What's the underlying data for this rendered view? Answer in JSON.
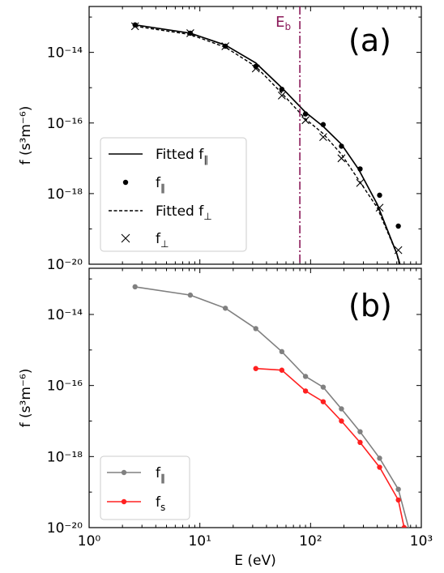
{
  "colors": {
    "fitted_par": "#000000",
    "fitted_perp": "#000000",
    "energy_marker": "#8b1a5a",
    "f_par_panel_b": "#808080",
    "f_s": "#ff2020"
  },
  "chart_data": [
    {
      "type": "line",
      "panel_label": "(a)",
      "xscale": "log",
      "yscale": "log",
      "xlim": [
        1,
        1000
      ],
      "ylim": [
        1e-20,
        2e-13
      ],
      "ylabel": "f (s³m⁻⁶)",
      "y_ticks": [
        "10⁻¹⁴",
        "10⁻¹⁶",
        "10⁻¹⁸",
        "10⁻²⁰"
      ],
      "vline": {
        "x": 80,
        "label": "E_b"
      },
      "legend_position": "lower-left",
      "series": [
        {
          "name": "Fitted f∥",
          "style": "solid",
          "x": [
            2.6,
            8.2,
            17,
            32,
            55,
            90,
            130,
            190,
            270,
            400,
            600,
            800
          ],
          "y": [
            6e-14,
            3.5e-14,
            1.6e-14,
            5e-15,
            1e-15,
            2e-16,
            8e-17,
            2.5e-17,
            5e-18,
            5e-19,
            2e-20,
            1e-21
          ]
        },
        {
          "name": "f∥",
          "style": "dots",
          "x": [
            2.6,
            8.2,
            17,
            32,
            55,
            90,
            130,
            190,
            280,
            420,
            620
          ],
          "y": [
            6e-14,
            3.5e-14,
            1.5e-14,
            4e-15,
            9e-16,
            1.8e-16,
            9e-17,
            2.2e-17,
            5e-18,
            9e-19,
            1.2e-19
          ]
        },
        {
          "name": "Fitted f⊥",
          "style": "dashed",
          "x": [
            2.6,
            8.2,
            17,
            32,
            55,
            90,
            130,
            190,
            270,
            400,
            600,
            750
          ],
          "y": [
            5.5e-14,
            3.2e-14,
            1.4e-14,
            4e-15,
            7e-16,
            1.3e-16,
            5e-17,
            1.3e-17,
            2.5e-18,
            4e-19,
            2e-20,
            1e-21
          ]
        },
        {
          "name": "f⊥",
          "style": "crosses",
          "x": [
            2.6,
            8.2,
            17,
            32,
            55,
            90,
            130,
            190,
            280,
            420,
            620
          ],
          "y": [
            5.5e-14,
            3.5e-14,
            1.5e-14,
            3.5e-15,
            6e-16,
            1.2e-16,
            4e-17,
            1e-17,
            2e-18,
            4e-19,
            2.5e-20
          ]
        }
      ]
    },
    {
      "type": "line",
      "panel_label": "(b)",
      "xscale": "log",
      "yscale": "log",
      "xlim": [
        1,
        1000
      ],
      "ylim": [
        1e-20,
        2e-13
      ],
      "xlabel": "E (eV)",
      "ylabel": "f (s³m⁻⁶)",
      "x_ticks": [
        "10⁰",
        "10¹",
        "10²",
        "10³"
      ],
      "y_ticks": [
        "10⁻¹⁴",
        "10⁻¹⁶",
        "10⁻¹⁸",
        "10⁻²⁰"
      ],
      "legend_position": "lower-left",
      "series": [
        {
          "name": "f∥",
          "color": "#808080",
          "x": [
            2.6,
            8.2,
            17,
            32,
            55,
            90,
            130,
            190,
            280,
            420,
            620,
            800
          ],
          "y": [
            6e-14,
            3.5e-14,
            1.5e-14,
            4e-15,
            9e-16,
            1.8e-16,
            9e-17,
            2.2e-17,
            5e-18,
            9e-19,
            1.2e-19,
            6e-21
          ]
        },
        {
          "name": "f_s",
          "color": "#ff2020",
          "x": [
            32,
            55,
            90,
            130,
            190,
            280,
            420,
            620,
            700
          ],
          "y": [
            3e-16,
            2.7e-16,
            7e-17,
            3.5e-17,
            1e-17,
            2.5e-18,
            5e-19,
            6e-20,
            1e-20
          ]
        }
      ]
    }
  ]
}
